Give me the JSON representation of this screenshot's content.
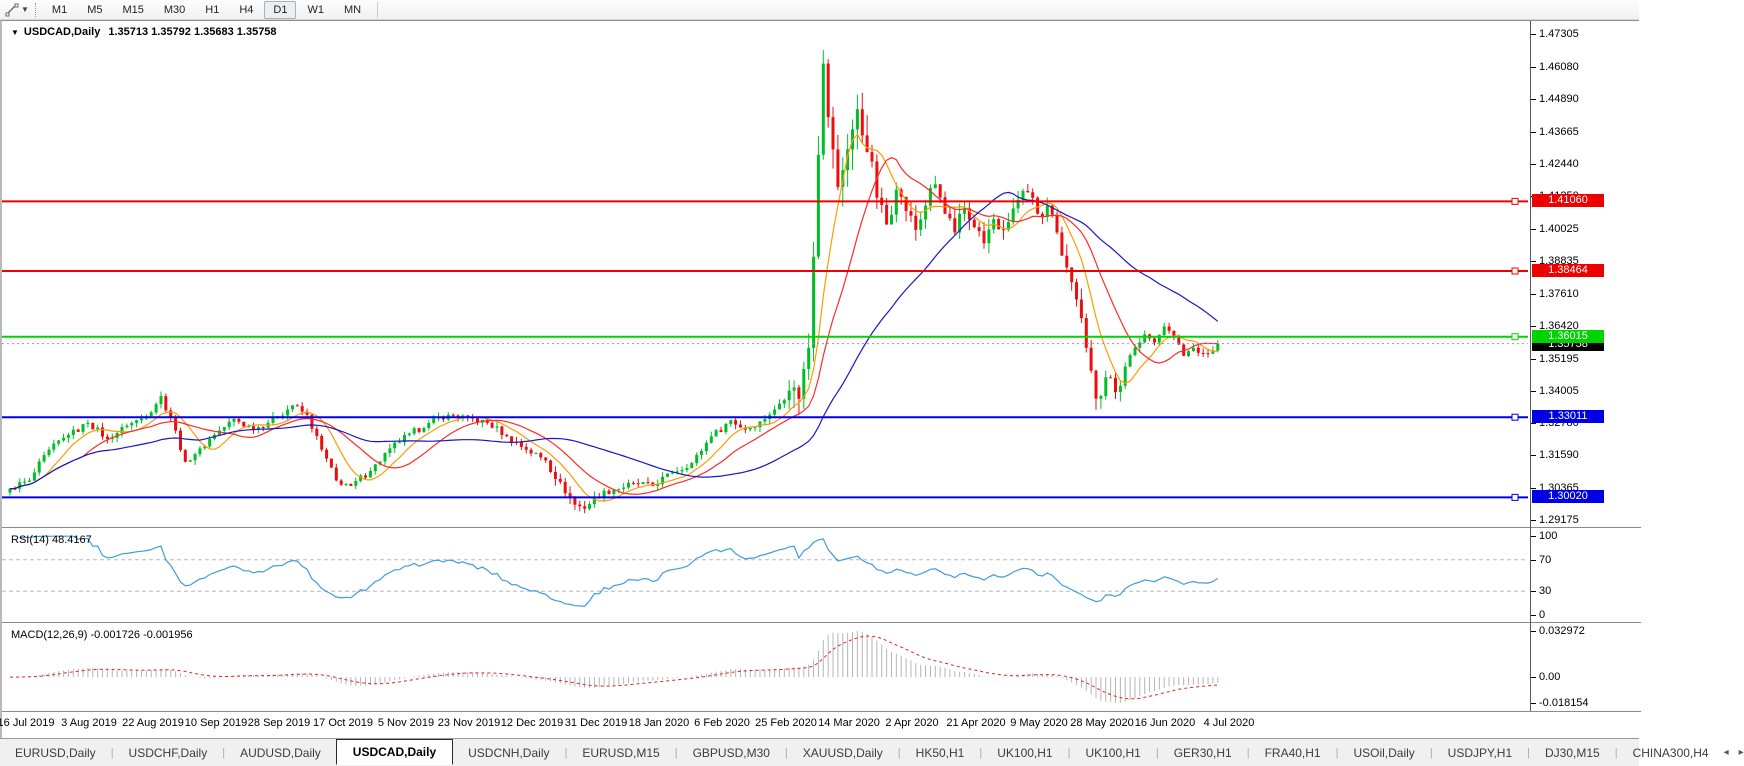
{
  "toolbar": {
    "dropdown_caret": "▼",
    "timeframes": [
      "M1",
      "M5",
      "M15",
      "M30",
      "H1",
      "H4",
      "D1",
      "W1",
      "MN"
    ],
    "active_timeframe": "D1"
  },
  "chart": {
    "collapse_icon": "▼",
    "title_symbol": "USDCAD,Daily",
    "ohlc_text": "1.35713 1.35792 1.35683 1.35758"
  },
  "chart_data": {
    "type": "candlestick",
    "symbol": "USDCAD",
    "timeframe": "Daily",
    "ohlc_display": {
      "open": "1.35713",
      "high": "1.35792",
      "low": "1.35683",
      "close": "1.35758"
    },
    "y_axis_ticks": [
      "1.47305",
      "1.46080",
      "1.44890",
      "1.43665",
      "1.42440",
      "1.41250",
      "1.40025",
      "1.38835",
      "1.37610",
      "1.36420",
      "1.35195",
      "1.34005",
      "1.32780",
      "1.31590",
      "1.30365",
      "1.29175"
    ],
    "x_axis_dates": [
      "16 Jul 2019",
      "3 Aug 2019",
      "22 Aug 2019",
      "10 Sep 2019",
      "28 Sep 2019",
      "17 Oct 2019",
      "5 Nov 2019",
      "23 Nov 2019",
      "12 Dec 2019",
      "31 Dec 2019",
      "18 Jan 2020",
      "6 Feb 2020",
      "25 Feb 2020",
      "14 Mar 2020",
      "2 Apr 2020",
      "21 Apr 2020",
      "9 May 2020",
      "28 May 2020",
      "16 Jun 2020",
      "4 Jul 2020"
    ],
    "horizontal_lines": [
      {
        "price": 1.4106,
        "label": "1.41060",
        "color": "#ee0000",
        "kind": "resistance"
      },
      {
        "price": 1.38464,
        "label": "1.38464",
        "color": "#ee0000",
        "kind": "resistance"
      },
      {
        "price": 1.36015,
        "label": "1.36015",
        "color": "#00d400",
        "kind": "level"
      },
      {
        "price": 1.33011,
        "label": "1.33011",
        "color": "#0000e6",
        "kind": "support"
      },
      {
        "price": 1.3002,
        "label": "1.30020",
        "color": "#0000e6",
        "kind": "support"
      }
    ],
    "current_price": {
      "value": 1.35758,
      "label": "1.35758",
      "label_bg": "#000000"
    },
    "colors": {
      "up": "#00be28",
      "down": "#ec0e0e"
    },
    "moving_averages": [
      {
        "period": 8,
        "color": "#ff9a00"
      },
      {
        "period": 16,
        "color": "#ff2a2a"
      },
      {
        "period": 40,
        "color": "#1616c8"
      }
    ],
    "candles": {
      "count": 249,
      "anchors": [
        [
          0,
          1.3035
        ],
        [
          4,
          1.3065
        ],
        [
          8,
          1.318
        ],
        [
          12,
          1.3235
        ],
        [
          16,
          1.328
        ],
        [
          20,
          1.322
        ],
        [
          24,
          1.327
        ],
        [
          28,
          1.3305
        ],
        [
          31,
          1.338
        ],
        [
          33,
          1.33
        ],
        [
          36,
          1.3135
        ],
        [
          39,
          1.3185
        ],
        [
          42,
          1.3235
        ],
        [
          46,
          1.3295
        ],
        [
          50,
          1.3255
        ],
        [
          55,
          1.3305
        ],
        [
          58,
          1.3345
        ],
        [
          61,
          1.331
        ],
        [
          64,
          1.318
        ],
        [
          67,
          1.3065
        ],
        [
          70,
          1.3045
        ],
        [
          74,
          1.31
        ],
        [
          78,
          1.3185
        ],
        [
          82,
          1.324
        ],
        [
          86,
          1.328
        ],
        [
          90,
          1.331
        ],
        [
          94,
          1.33
        ],
        [
          98,
          1.328
        ],
        [
          102,
          1.323
        ],
        [
          106,
          1.318
        ],
        [
          110,
          1.314
        ],
        [
          113,
          1.306
        ],
        [
          116,
          1.2975
        ],
        [
          118,
          1.296
        ],
        [
          120,
          1.3005
        ],
        [
          124,
          1.303
        ],
        [
          128,
          1.3055
        ],
        [
          132,
          1.3045
        ],
        [
          136,
          1.3095
        ],
        [
          140,
          1.313
        ],
        [
          144,
          1.323
        ],
        [
          148,
          1.329
        ],
        [
          151,
          1.3255
        ],
        [
          154,
          1.3285
        ],
        [
          157,
          1.333
        ],
        [
          160,
          1.34
        ],
        [
          162,
          1.337
        ],
        [
          164,
          1.356
        ],
        [
          165,
          1.39
        ],
        [
          166,
          1.428
        ],
        [
          167,
          1.462
        ],
        [
          168,
          1.442
        ],
        [
          169,
          1.43
        ],
        [
          170,
          1.416
        ],
        [
          172,
          1.43
        ],
        [
          174,
          1.445
        ],
        [
          176,
          1.429
        ],
        [
          178,
          1.412
        ],
        [
          180,
          1.402
        ],
        [
          182,
          1.415
        ],
        [
          184,
          1.407
        ],
        [
          186,
          1.4
        ],
        [
          188,
          1.409
        ],
        [
          190,
          1.417
        ],
        [
          192,
          1.406
        ],
        [
          194,
          1.399
        ],
        [
          196,
          1.408
        ],
        [
          198,
          1.401
        ],
        [
          200,
          1.395
        ],
        [
          202,
          1.404
        ],
        [
          204,
          1.4
        ],
        [
          206,
          1.408
        ],
        [
          209,
          1.414
        ],
        [
          211,
          1.406
        ],
        [
          213,
          1.409
        ],
        [
          215,
          1.399
        ],
        [
          217,
          1.386
        ],
        [
          219,
          1.374
        ],
        [
          221,
          1.356
        ],
        [
          223,
          1.337
        ],
        [
          225,
          1.345
        ],
        [
          227,
          1.3395
        ],
        [
          229,
          1.349
        ],
        [
          231,
          1.356
        ],
        [
          233,
          1.361
        ],
        [
          235,
          1.358
        ],
        [
          237,
          1.364
        ],
        [
          239,
          1.36
        ],
        [
          241,
          1.353
        ],
        [
          243,
          1.356
        ],
        [
          245,
          1.354
        ],
        [
          247,
          1.355
        ],
        [
          248,
          1.35758
        ]
      ],
      "volatility_default": 0.0026,
      "volatility_zones": [
        [
          110,
          121,
          0.0042
        ],
        [
          160,
          179,
          0.011
        ],
        [
          179,
          215,
          0.0058
        ],
        [
          215,
          229,
          0.0062
        ]
      ]
    },
    "indicators": {
      "rsi": {
        "label": "RSI(14) 48.4167",
        "period": 14,
        "value": 48.4167,
        "levels": [
          70,
          30
        ],
        "axis": [
          "100",
          "70",
          "30",
          "0"
        ],
        "color": "#3e9cdf",
        "level_color": "#b8b8b8"
      },
      "macd": {
        "label": "MACD(12,26,9) -0.001726 -0.001956",
        "fast": 12,
        "slow": 26,
        "signal": 9,
        "values": [
          -0.001726,
          -0.001956
        ],
        "axis_max": "0.032972",
        "axis_zero": "0.00",
        "axis_min": "-0.018154",
        "hist_color": "#b4b4b4",
        "signal_color": "#e02020"
      }
    }
  },
  "tabs": {
    "items": [
      "EURUSD,Daily",
      "USDCHF,Daily",
      "AUDUSD,Daily",
      "USDCAD,Daily",
      "USDCNH,Daily",
      "EURUSD,M15",
      "GBPUSD,M30",
      "XAUUSD,Daily",
      "HK50,H1",
      "UK100,H1",
      "UK100,H1",
      "GER30,H1",
      "FRA40,H1",
      "USOil,Daily",
      "USDJPY,H1",
      "DJ30,M15",
      "CHINA300,H4"
    ],
    "active": "USDCAD,Daily",
    "scroll_left": "◂",
    "scroll_right": "▸"
  }
}
